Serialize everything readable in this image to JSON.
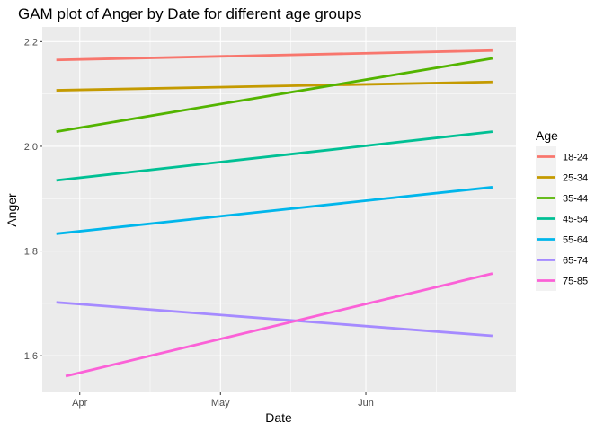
{
  "chart_data": {
    "type": "line",
    "title": "GAM plot of Anger by Date for different age groups",
    "xlabel": "Date",
    "ylabel": "Anger",
    "x_ticks": [
      "Apr",
      "May",
      "Jun"
    ],
    "y_ticks": [
      "1.6",
      "1.8",
      "2.0",
      "2.2"
    ],
    "xlim": [
      "2020-03-24",
      "2020-07-03"
    ],
    "ylim": [
      1.53,
      2.228
    ],
    "grid": true,
    "legend": {
      "title": "Age",
      "position": "right"
    },
    "series": [
      {
        "name": "18-24",
        "color": "#F8766D",
        "x": [
          "2020-03-27",
          "2020-06-28"
        ],
        "values": [
          2.165,
          2.183
        ]
      },
      {
        "name": "25-34",
        "color": "#C49A00",
        "x": [
          "2020-03-27",
          "2020-06-28"
        ],
        "values": [
          2.107,
          2.123
        ]
      },
      {
        "name": "35-44",
        "color": "#53B400",
        "x": [
          "2020-03-27",
          "2020-06-28"
        ],
        "values": [
          2.028,
          2.168
        ]
      },
      {
        "name": "45-54",
        "color": "#00C094",
        "x": [
          "2020-03-27",
          "2020-06-28"
        ],
        "values": [
          1.935,
          2.028
        ]
      },
      {
        "name": "55-64",
        "color": "#00B6EB",
        "x": [
          "2020-03-27",
          "2020-06-28"
        ],
        "values": [
          1.833,
          1.922
        ]
      },
      {
        "name": "65-74",
        "color": "#A58AFF",
        "x": [
          "2020-03-27",
          "2020-06-28"
        ],
        "values": [
          1.702,
          1.638
        ]
      },
      {
        "name": "75-85",
        "color": "#FB61D7",
        "x": [
          "2020-03-29",
          "2020-06-28"
        ],
        "values": [
          1.561,
          1.757
        ]
      }
    ]
  }
}
